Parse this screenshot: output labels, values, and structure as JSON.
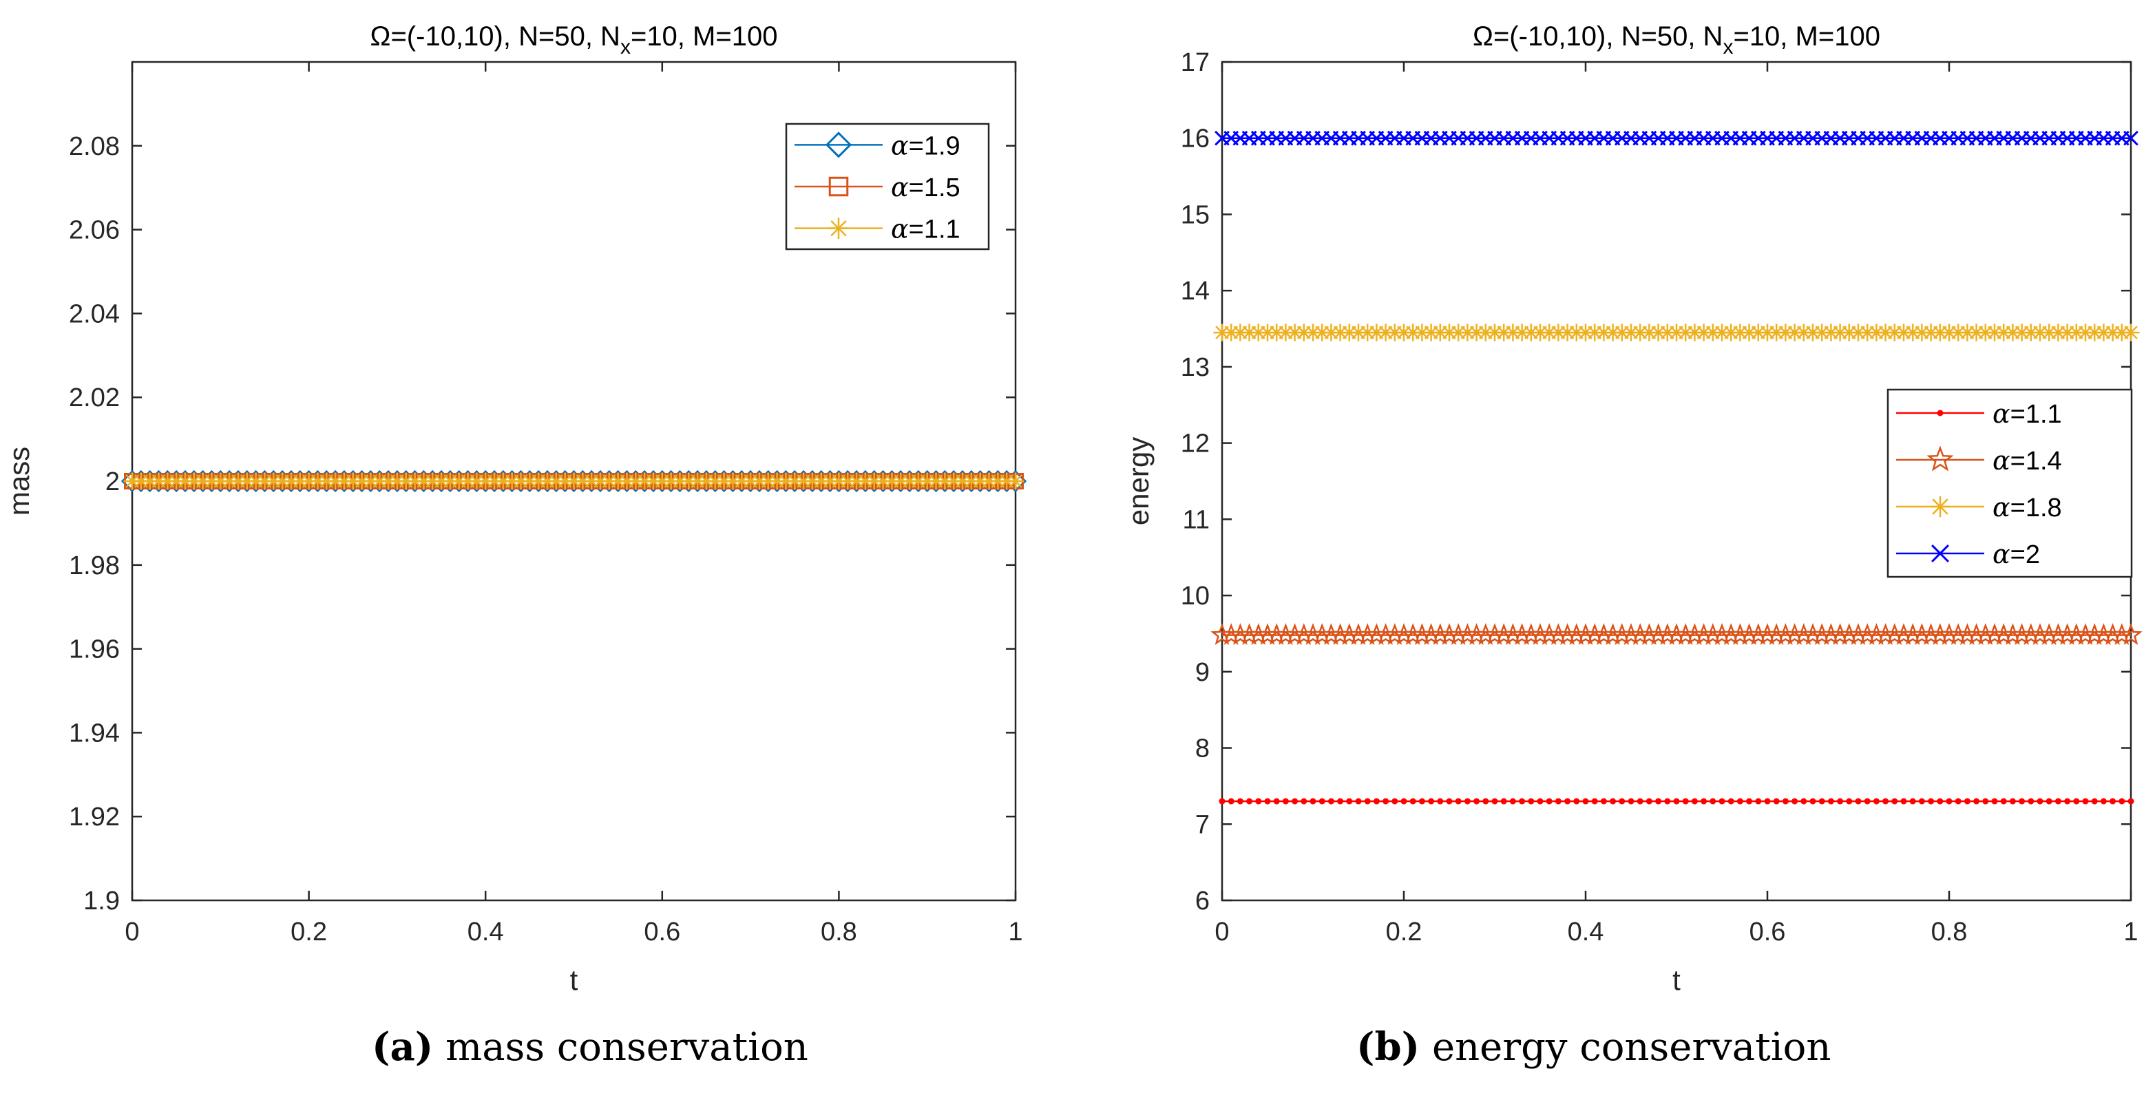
{
  "figure": {
    "captions": [
      {
        "label": "(a)",
        "text": "mass conservation"
      },
      {
        "label": "(b)",
        "text": "energy conservation"
      }
    ]
  },
  "chart_data": [
    {
      "type": "line",
      "title": "Ω=(-10,10), N=50, N",
      "title_sub": "x",
      "title_rest": "=10, M=100",
      "xlabel": "t",
      "ylabel": "mass",
      "xlim": [
        0,
        1
      ],
      "ylim": [
        1.9,
        2.1
      ],
      "xticks": [
        0,
        0.2,
        0.4,
        0.6,
        0.8,
        1
      ],
      "xtick_labels": [
        "0",
        "0.2",
        "0.4",
        "0.6",
        "0.8",
        "1"
      ],
      "yticks": [
        1.9,
        1.92,
        1.94,
        1.96,
        1.98,
        2,
        2.02,
        2.04,
        2.06,
        2.08
      ],
      "ytick_labels": [
        "1.9",
        "1.92",
        "1.94",
        "1.96",
        "1.98",
        "2",
        "2.02",
        "2.04",
        "2.06",
        "2.08"
      ],
      "legend_position": "top-right",
      "marker_points": 101,
      "series": [
        {
          "name": "α=1.9",
          "alpha": "1.9",
          "color": "#0072BD",
          "marker": "diamond",
          "x": [
            0,
            1
          ],
          "values": [
            2,
            2
          ]
        },
        {
          "name": "α=1.5",
          "alpha": "1.5",
          "color": "#D95319",
          "marker": "square",
          "x": [
            0,
            1
          ],
          "values": [
            2,
            2
          ]
        },
        {
          "name": "α=1.1",
          "alpha": "1.1",
          "color": "#EDB120",
          "marker": "asterisk",
          "x": [
            0,
            1
          ],
          "values": [
            2,
            2
          ]
        }
      ]
    },
    {
      "type": "line",
      "title": "Ω=(-10,10), N=50, N",
      "title_sub": "x",
      "title_rest": "=10, M=100",
      "xlabel": "t",
      "ylabel": "energy",
      "xlim": [
        0,
        1
      ],
      "ylim": [
        6,
        17
      ],
      "xticks": [
        0,
        0.2,
        0.4,
        0.6,
        0.8,
        1
      ],
      "xtick_labels": [
        "0",
        "0.2",
        "0.4",
        "0.6",
        "0.8",
        "1"
      ],
      "yticks": [
        6,
        7,
        8,
        9,
        10,
        11,
        12,
        13,
        14,
        15,
        16,
        17
      ],
      "ytick_labels": [
        "6",
        "7",
        "8",
        "9",
        "10",
        "11",
        "12",
        "13",
        "14",
        "15",
        "16",
        "17"
      ],
      "legend_position": "middle-right",
      "marker_points": 101,
      "series": [
        {
          "name": "α=1.1",
          "alpha": "1.1",
          "color": "#FF0000",
          "marker": "dot",
          "x": [
            0,
            1
          ],
          "values": [
            7.3,
            7.3
          ]
        },
        {
          "name": "α=1.4",
          "alpha": "1.4",
          "color": "#D95319",
          "marker": "star",
          "x": [
            0,
            1
          ],
          "values": [
            9.48,
            9.48
          ]
        },
        {
          "name": "α=1.8",
          "alpha": "1.8",
          "color": "#EDB120",
          "marker": "asterisk",
          "x": [
            0,
            1
          ],
          "values": [
            13.45,
            13.45
          ]
        },
        {
          "name": "α=2",
          "alpha": "2",
          "color": "#0000FF",
          "marker": "x",
          "x": [
            0,
            1
          ],
          "values": [
            16,
            16
          ]
        }
      ]
    }
  ]
}
